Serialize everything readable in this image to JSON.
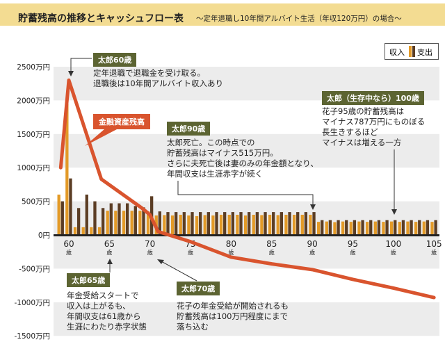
{
  "header": {
    "title": "貯蓄残高の推移とキャッシュフロー表",
    "subtitle": "～定年退職し10年間アルバイト生活（年収120万円）の場合～"
  },
  "legend": {
    "income": "収入",
    "expense": "支出"
  },
  "colors": {
    "income": "#e39a27",
    "expense": "#5b3d24",
    "balance": "#d9542e",
    "band": "#ececec",
    "tag": "#5c6432",
    "title_bg": "#f3dc92"
  },
  "chart_data": {
    "type": "bar+line",
    "ylim": [
      -1500,
      2500
    ],
    "yticks": [
      2500,
      2000,
      1500,
      1000,
      500,
      0,
      -500,
      -1000,
      -1500
    ],
    "ytick_labels": [
      "2500万円",
      "2000万円",
      "1500万円",
      "1000万円",
      "500万円",
      "0円",
      "-500万円",
      "-1000万円",
      "-1500万円"
    ],
    "xticks": [
      60,
      65,
      70,
      75,
      80,
      85,
      90,
      95,
      100,
      105
    ],
    "xtick_unit": "歳",
    "bar_ages": [
      59,
      60,
      61,
      62,
      63,
      64,
      65,
      66,
      67,
      68,
      69,
      70,
      71,
      72,
      73,
      74,
      75,
      76,
      77,
      78,
      79,
      80,
      81,
      82,
      83,
      84,
      85,
      86,
      87,
      88,
      89,
      90,
      91,
      92,
      93,
      94,
      95,
      96,
      97,
      98,
      99,
      100,
      101,
      102,
      103,
      104,
      105
    ],
    "series": [
      {
        "name": "収入",
        "type": "bar",
        "values": [
          600,
          1950,
          115,
          115,
          115,
          115,
          360,
          360,
          360,
          360,
          360,
          350,
          290,
          295,
          290,
          300,
          290,
          280,
          295,
          290,
          300,
          300,
          300,
          290,
          300,
          295,
          300,
          295,
          300,
          300,
          300,
          300,
          195,
          200,
          190,
          200,
          195,
          200,
          195,
          200,
          195,
          200,
          195,
          200,
          195,
          200,
          195
        ]
      },
      {
        "name": "支出",
        "type": "bar",
        "values": [
          500,
          840,
          400,
          600,
          500,
          400,
          470,
          470,
          470,
          430,
          410,
          575,
          350,
          340,
          340,
          340,
          340,
          340,
          340,
          340,
          340,
          340,
          340,
          340,
          340,
          340,
          340,
          340,
          340,
          340,
          340,
          340,
          220,
          220,
          220,
          220,
          220,
          220,
          220,
          220,
          220,
          220,
          220,
          220,
          220,
          220,
          220
        ]
      },
      {
        "name": "金融資産残高",
        "type": "line",
        "x": [
          59,
          60,
          64,
          69,
          70,
          71,
          75,
          80,
          85,
          90,
          95,
          100,
          105
        ],
        "values": [
          1000,
          2300,
          830,
          400,
          300,
          50,
          -100,
          -330,
          -430,
          -515,
          -660,
          -790,
          -930
        ]
      }
    ]
  },
  "annotations": {
    "bubble": "金融資産残高",
    "a60": {
      "tag": "太郎60歳",
      "lines": [
        "定年退職で退職金を受け取る。",
        "退職後は10年間アルバイト収入あり"
      ]
    },
    "a90": {
      "tag": "太郎90歳",
      "lines": [
        "太郎死亡。この時点での",
        "貯蓄残高はマイナス515万円。",
        "さらに夫死亡後は妻のみの年金額となり、",
        "年間収支は生涯赤字が続く"
      ]
    },
    "a100": {
      "tag": "太郎（生存中なら）100歳",
      "lines": [
        "花子95歳の貯蓄残高は",
        "マイナス787万円にものぼる",
        "長生きするほど",
        "マイナスは増える一方"
      ]
    },
    "a65": {
      "tag": "太郎65歳",
      "lines": [
        "年金受給スタートで",
        "収入は上がるも、",
        "年間収支は61歳から",
        "生涯にわたり赤字状態"
      ]
    },
    "a70": {
      "tag": "太郎70歳",
      "lines": [
        "花子の年金受給が開始されるも",
        "貯蓄残高は100万円程度にまで",
        "落ち込む"
      ]
    }
  }
}
